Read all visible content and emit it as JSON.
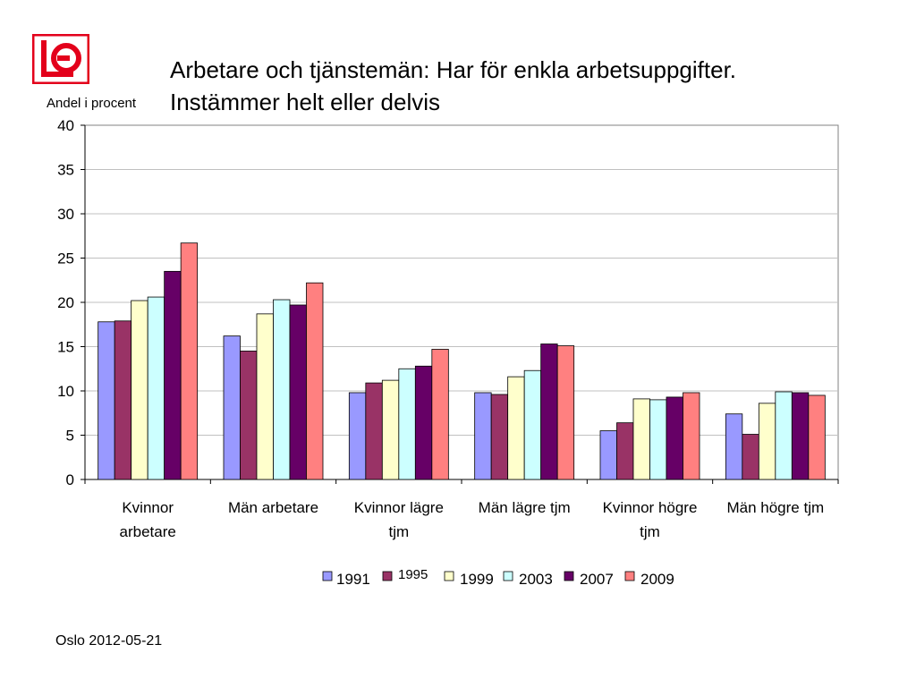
{
  "logo": {
    "name": "LO"
  },
  "title_line1": "Arbetare och tjänstemän: Har för enkla arbetsuppgifter.",
  "title_line2": "Instämmer helt eller delvis",
  "footer": "Oslo 2012-05-21",
  "chart_data": {
    "type": "bar",
    "ylabel": "Andel i procent",
    "xlabel": "",
    "ylim": [
      0,
      40
    ],
    "yticks": [
      0,
      5,
      10,
      15,
      20,
      25,
      30,
      35,
      40
    ],
    "grid": true,
    "legend_position": "bottom",
    "categories": [
      [
        "Kvinnor",
        "arbetare"
      ],
      [
        "Män arbetare"
      ],
      [
        "Kvinnor lägre",
        "tjm"
      ],
      [
        "Män lägre tjm"
      ],
      [
        "Kvinnor högre",
        "tjm"
      ],
      [
        "Män högre tjm"
      ]
    ],
    "series": [
      {
        "name": "1991",
        "color": "#9999ff",
        "values": [
          17.8,
          16.2,
          9.8,
          9.8,
          5.5,
          7.4
        ]
      },
      {
        "name": "1995",
        "color": "#993366",
        "values": [
          17.9,
          14.5,
          10.9,
          9.6,
          6.4,
          5.1
        ]
      },
      {
        "name": "1999",
        "color": "#ffffcc",
        "values": [
          20.2,
          18.7,
          11.2,
          11.6,
          9.1,
          8.6
        ]
      },
      {
        "name": "2003",
        "color": "#ccffff",
        "values": [
          20.6,
          20.3,
          12.5,
          12.3,
          9.0,
          9.9
        ]
      },
      {
        "name": "2007",
        "color": "#660066",
        "values": [
          23.5,
          19.7,
          12.8,
          15.3,
          9.3,
          9.8
        ]
      },
      {
        "name": "2009",
        "color": "#ff8080",
        "values": [
          26.7,
          22.2,
          14.7,
          15.1,
          9.8,
          9.5
        ]
      }
    ]
  }
}
